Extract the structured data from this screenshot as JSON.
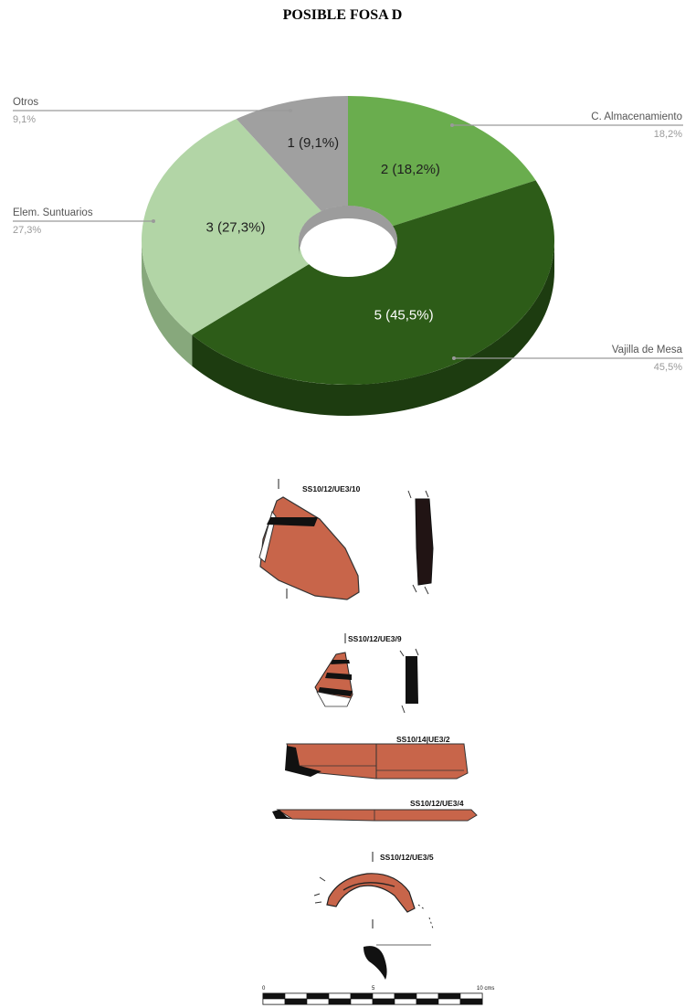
{
  "title": "POSIBLE FOSA D",
  "chart_data": {
    "type": "pie",
    "style": "3d-donut",
    "legend": "external-callouts",
    "slices": [
      {
        "name": "C. Almacenamiento",
        "value": 2,
        "percent": "18,2%",
        "inner_label": "2 (18,2%)",
        "color": "#6aad4e",
        "side_color": "#4f8a38",
        "label_color": "#1f1f1f"
      },
      {
        "name": "Vajilla de Mesa",
        "value": 5,
        "percent": "45,5%",
        "inner_label": "5 (45,5%)",
        "color": "#2d5c18",
        "side_color": "#1d3c10",
        "label_color": "#ffffff"
      },
      {
        "name": "Elem. Suntuarios",
        "value": 3,
        "percent": "27,3%",
        "inner_label": "3 (27,3%)",
        "color": "#b2d5a6",
        "side_color": "#87a87c",
        "label_color": "#1f1f1f"
      },
      {
        "name": "Otros",
        "value": 1,
        "percent": "9,1%",
        "inner_label": "1 (9,1%)",
        "color": "#a0a0a0",
        "side_color": "#7a7a7a",
        "label_color": "#1f1f1f"
      }
    ]
  },
  "drawings": {
    "captions": [
      "SS10/12/UE3/10",
      "SS10/12/UE3/9",
      "SS10/14|UE3/2",
      "SS10/12/UE3/4",
      "SS10/12/UE3/5"
    ],
    "fill_color": "#c8654a",
    "scale": {
      "start": "0",
      "mid": "5",
      "end": "10 cms"
    }
  }
}
